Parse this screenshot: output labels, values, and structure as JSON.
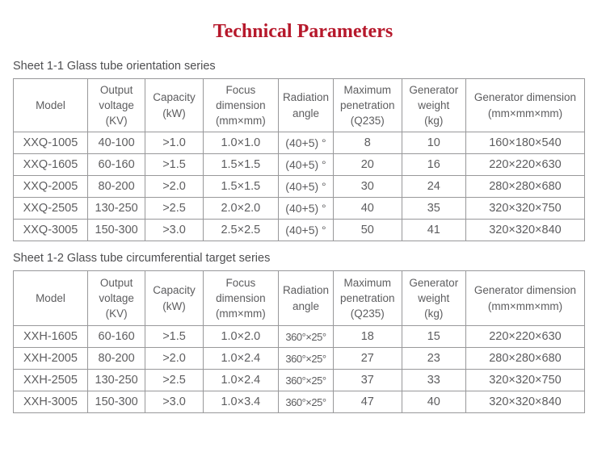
{
  "page": {
    "title": "Technical Parameters"
  },
  "colors": {
    "title_red": "#b6182b",
    "table_text": "#5d5d5f",
    "caption_text": "#4e4e50",
    "border_gray": "#98989a",
    "background": "#ffffff"
  },
  "tables": [
    {
      "caption": "Sheet 1-1 Glass tube orientation series",
      "columns": [
        "Model",
        "Output\nvoltage\n(KV)",
        "Capacity\n(kW)",
        "Focus\ndimension\n(mm×mm)",
        "Radiation\nangle",
        "Maximum\npenetration\n(Q235)",
        "Generator\nweight\n(kg)",
        "Generator dimension\n(mm×mm×mm)"
      ],
      "rows": [
        [
          "XXQ-1005",
          "40-100",
          ">1.0",
          "1.0×1.0",
          "(40+5) °",
          "8",
          "10",
          "160×180×540"
        ],
        [
          "XXQ-1605",
          "60-160",
          ">1.5",
          "1.5×1.5",
          "(40+5) °",
          "20",
          "16",
          "220×220×630"
        ],
        [
          "XXQ-2005",
          "80-200",
          ">2.0",
          "1.5×1.5",
          "(40+5) °",
          "30",
          "24",
          "280×280×680"
        ],
        [
          "XXQ-2505",
          "130-250",
          ">2.5",
          "2.0×2.0",
          "(40+5) °",
          "40",
          "35",
          "320×320×750"
        ],
        [
          "XXQ-3005",
          "150-300",
          ">3.0",
          "2.5×2.5",
          "(40+5) °",
          "50",
          "41",
          "320×320×840"
        ]
      ]
    },
    {
      "caption": "Sheet 1-2 Glass tube circumferential target series",
      "columns": [
        "Model",
        "Output\nvoltage\n(KV)",
        "Capacity\n(kW)",
        "Focus\ndimension\n(mm×mm)",
        "Radiation\nangle",
        "Maximum\npenetration\n(Q235)",
        "Generator\nweight\n(kg)",
        "Generator dimension\n(mm×mm×mm)"
      ],
      "rows": [
        [
          "XXH-1605",
          "60-160",
          ">1.5",
          "1.0×2.0",
          "360°×25°",
          "18",
          "15",
          "220×220×630"
        ],
        [
          "XXH-2005",
          "80-200",
          ">2.0",
          "1.0×2.4",
          "360°×25°",
          "27",
          "23",
          "280×280×680"
        ],
        [
          "XXH-2505",
          "130-250",
          ">2.5",
          "1.0×2.4",
          "360°×25°",
          "37",
          "33",
          "320×320×750"
        ],
        [
          "XXH-3005",
          "150-300",
          ">3.0",
          "1.0×3.4",
          "360°×25°",
          "47",
          "40",
          "320×320×840"
        ]
      ]
    }
  ]
}
